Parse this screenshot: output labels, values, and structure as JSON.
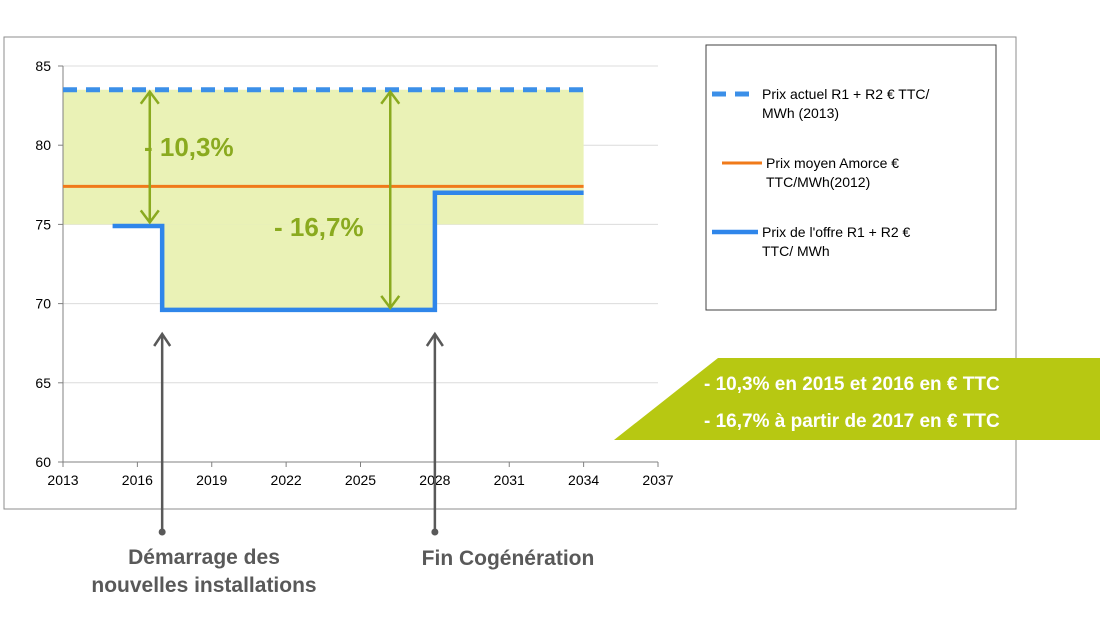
{
  "chart_data": {
    "type": "line",
    "xlim": [
      2013,
      2037
    ],
    "ylim": [
      60,
      85
    ],
    "x_ticks": [
      "2013",
      "2016",
      "2019",
      "2022",
      "2025",
      "2028",
      "2031",
      "2034",
      "2037"
    ],
    "y_ticks": [
      "60",
      "65",
      "70",
      "75",
      "80",
      "85"
    ],
    "grid": true,
    "legend_position": "right",
    "shaded_band": {
      "x": [
        2013,
        2034
      ],
      "y": [
        75,
        83.5
      ],
      "color": "#eaf2b6"
    },
    "series": [
      {
        "name": "Prix actuel R1 + R2 € TTC/ MWh (2013)",
        "legend_lines": [
          "Prix actuel R1 + R2 € TTC/",
          "MWh (2013)"
        ],
        "style": "dashed",
        "color": "#3b8fe8",
        "points": [
          [
            2013,
            83.5
          ],
          [
            2034,
            83.5
          ]
        ]
      },
      {
        "name": "Prix moyen Amorce € TTC/MWh(2012)",
        "legend_lines": [
          "Prix moyen Amorce €",
          "TTC/MWh(2012)"
        ],
        "style": "solid",
        "color": "#f07a1a",
        "points": [
          [
            2013,
            77.4
          ],
          [
            2034,
            77.4
          ]
        ]
      },
      {
        "name": "Prix de l'offre R1 + R2 € TTC/ MWh",
        "legend_lines": [
          "Prix de l'offre R1 + R2 €",
          "TTC/ MWh"
        ],
        "style": "solid",
        "color": "#2f86ea",
        "points": [
          [
            2015,
            74.9
          ],
          [
            2017,
            74.9
          ],
          [
            2017,
            69.6
          ],
          [
            2028,
            69.6
          ],
          [
            2028,
            77
          ],
          [
            2034,
            77
          ]
        ]
      }
    ],
    "annotations": [
      {
        "text": "- 10,3%",
        "arrow_x": 2016.5,
        "arrow_y": [
          83.5,
          75
        ]
      },
      {
        "text": "- 16,7%",
        "arrow_x": 2026.2,
        "arrow_y": [
          83.5,
          69.6
        ]
      }
    ]
  },
  "banner": {
    "lines": [
      "- 10,3% en 2015 et 2016 en € TTC",
      "- 16,7% à partir de 2017 en € TTC"
    ],
    "color": "#b7c812"
  },
  "callouts": [
    {
      "x_year": 2017,
      "lines": [
        "Démarrage des",
        "nouvelles installations"
      ]
    },
    {
      "x_year": 2028,
      "lines": [
        "Fin Cogénération"
      ]
    }
  ]
}
